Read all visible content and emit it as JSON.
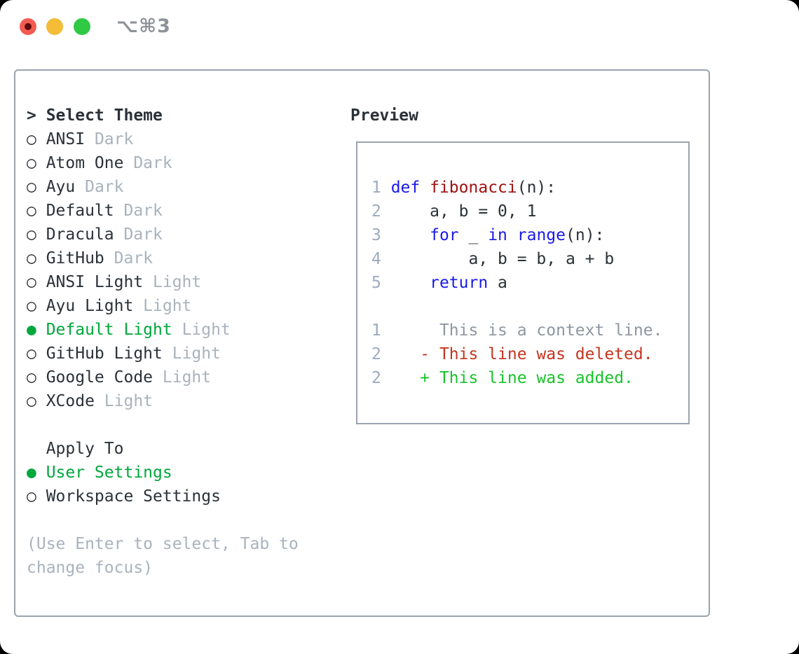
{
  "window": {
    "title": "⌥⌘3"
  },
  "colors": {
    "dark": "#2b3138",
    "muted": "#a9b2bd",
    "ctx": "#8d97a1",
    "num": "#9dabbd",
    "green": "#00a73c",
    "blue": "#1a1ae8",
    "red": "#a01111",
    "diffRed": "#c5351f",
    "diffGreen": "#19c32b",
    "border": "#9aa3ae",
    "titleGray": "#8e9298",
    "tlRed": "#f35b51",
    "tlRedDot": "#5c0a0a",
    "tlYellow": "#f5bc38",
    "tlGreen": "#2fc944"
  },
  "left_pane": {
    "lines": [
      {
        "name": "theme-list-header",
        "interactable": false,
        "segments": [
          {
            "t": "> Select Theme",
            "c": "dark",
            "b": true
          }
        ]
      },
      {
        "name": "theme-option-ansi-dark",
        "interactable": true,
        "segments": [
          {
            "t": "○ ANSI ",
            "c": "dark"
          },
          {
            "t": "Dark",
            "c": "muted"
          }
        ]
      },
      {
        "name": "theme-option-atom-one-dark",
        "interactable": true,
        "segments": [
          {
            "t": "○ Atom One ",
            "c": "dark"
          },
          {
            "t": "Dark",
            "c": "muted"
          }
        ]
      },
      {
        "name": "theme-option-ayu-dark",
        "interactable": true,
        "segments": [
          {
            "t": "○ Ayu ",
            "c": "dark"
          },
          {
            "t": "Dark",
            "c": "muted"
          }
        ]
      },
      {
        "name": "theme-option-default-dark",
        "interactable": true,
        "segments": [
          {
            "t": "○ Default ",
            "c": "dark"
          },
          {
            "t": "Dark",
            "c": "muted"
          }
        ]
      },
      {
        "name": "theme-option-dracula-dark",
        "interactable": true,
        "segments": [
          {
            "t": "○ Dracula ",
            "c": "dark"
          },
          {
            "t": "Dark",
            "c": "muted"
          }
        ]
      },
      {
        "name": "theme-option-github-dark",
        "interactable": true,
        "segments": [
          {
            "t": "○ GitHub ",
            "c": "dark"
          },
          {
            "t": "Dark",
            "c": "muted"
          }
        ]
      },
      {
        "name": "theme-option-ansi-light",
        "interactable": true,
        "segments": [
          {
            "t": "○ ANSI Light ",
            "c": "dark"
          },
          {
            "t": "Light",
            "c": "muted"
          }
        ]
      },
      {
        "name": "theme-option-ayu-light",
        "interactable": true,
        "segments": [
          {
            "t": "○ Ayu Light ",
            "c": "dark"
          },
          {
            "t": "Light",
            "c": "muted"
          }
        ]
      },
      {
        "name": "theme-option-default-light-selected",
        "interactable": true,
        "segments": [
          {
            "t": "● Default Light ",
            "c": "green"
          },
          {
            "t": "Light",
            "c": "muted"
          }
        ]
      },
      {
        "name": "theme-option-github-light",
        "interactable": true,
        "segments": [
          {
            "t": "○ GitHub Light ",
            "c": "dark"
          },
          {
            "t": "Light",
            "c": "muted"
          }
        ]
      },
      {
        "name": "theme-option-google-code",
        "interactable": true,
        "segments": [
          {
            "t": "○ Google Code ",
            "c": "dark"
          },
          {
            "t": "Light",
            "c": "muted"
          }
        ]
      },
      {
        "name": "theme-option-xcode",
        "interactable": true,
        "segments": [
          {
            "t": "○ XCode ",
            "c": "dark"
          },
          {
            "t": "Light",
            "c": "muted"
          }
        ]
      },
      {
        "name": "spacer-line",
        "interactable": false,
        "segments": []
      },
      {
        "name": "apply-to-header",
        "interactable": false,
        "segments": [
          {
            "t": "  Apply To",
            "c": "dark"
          }
        ]
      },
      {
        "name": "apply-option-user-settings-selected",
        "interactable": true,
        "segments": [
          {
            "t": "● User Settings",
            "c": "green"
          }
        ]
      },
      {
        "name": "apply-option-workspace-settings",
        "interactable": true,
        "segments": [
          {
            "t": "○ Workspace Settings",
            "c": "dark"
          }
        ]
      },
      {
        "name": "spacer-line",
        "interactable": false,
        "segments": []
      },
      {
        "name": "help-text-line-1",
        "interactable": false,
        "segments": [
          {
            "t": "(Use Enter to select, Tab to",
            "c": "muted"
          }
        ]
      },
      {
        "name": "help-text-line-2",
        "interactable": false,
        "segments": [
          {
            "t": "change focus)",
            "c": "muted"
          }
        ]
      }
    ]
  },
  "preview": {
    "header": "Preview",
    "lines": [
      {
        "name": "code-line-1",
        "interactable": false,
        "segments": [
          {
            "t": "1 ",
            "c": "num"
          },
          {
            "t": "def",
            "c": "blue"
          },
          {
            "t": " ",
            "c": "dark"
          },
          {
            "t": "fibonacci",
            "c": "red"
          },
          {
            "t": "(n):",
            "c": "dark"
          }
        ]
      },
      {
        "name": "code-line-2",
        "interactable": false,
        "segments": [
          {
            "t": "2 ",
            "c": "num"
          },
          {
            "t": "    a, b = 0, 1",
            "c": "dark"
          }
        ]
      },
      {
        "name": "code-line-3",
        "interactable": false,
        "segments": [
          {
            "t": "3 ",
            "c": "num"
          },
          {
            "t": "    ",
            "c": "dark"
          },
          {
            "t": "for",
            "c": "blue"
          },
          {
            "t": " _ ",
            "c": "dark"
          },
          {
            "t": "in",
            "c": "blue"
          },
          {
            "t": " ",
            "c": "dark"
          },
          {
            "t": "range",
            "c": "blue"
          },
          {
            "t": "(n):",
            "c": "dark"
          }
        ]
      },
      {
        "name": "code-line-4",
        "interactable": false,
        "segments": [
          {
            "t": "4 ",
            "c": "num"
          },
          {
            "t": "        a, b = b, a + b",
            "c": "dark"
          }
        ]
      },
      {
        "name": "code-line-5",
        "interactable": false,
        "segments": [
          {
            "t": "5 ",
            "c": "num"
          },
          {
            "t": "    ",
            "c": "dark"
          },
          {
            "t": "return",
            "c": "blue"
          },
          {
            "t": " a",
            "c": "dark"
          }
        ]
      },
      {
        "name": "spacer-line",
        "interactable": false,
        "segments": []
      },
      {
        "name": "diff-context-line",
        "interactable": false,
        "segments": [
          {
            "t": "1 ",
            "c": "num"
          },
          {
            "t": "     This is a context line.",
            "c": "ctx"
          }
        ]
      },
      {
        "name": "diff-deleted-line",
        "interactable": false,
        "segments": [
          {
            "t": "2 ",
            "c": "num"
          },
          {
            "t": "   - This line was deleted.",
            "c": "diffRed"
          }
        ]
      },
      {
        "name": "diff-added-line",
        "interactable": false,
        "segments": [
          {
            "t": "2 ",
            "c": "num"
          },
          {
            "t": "   + This line was added.",
            "c": "diffGreen"
          }
        ]
      }
    ]
  }
}
